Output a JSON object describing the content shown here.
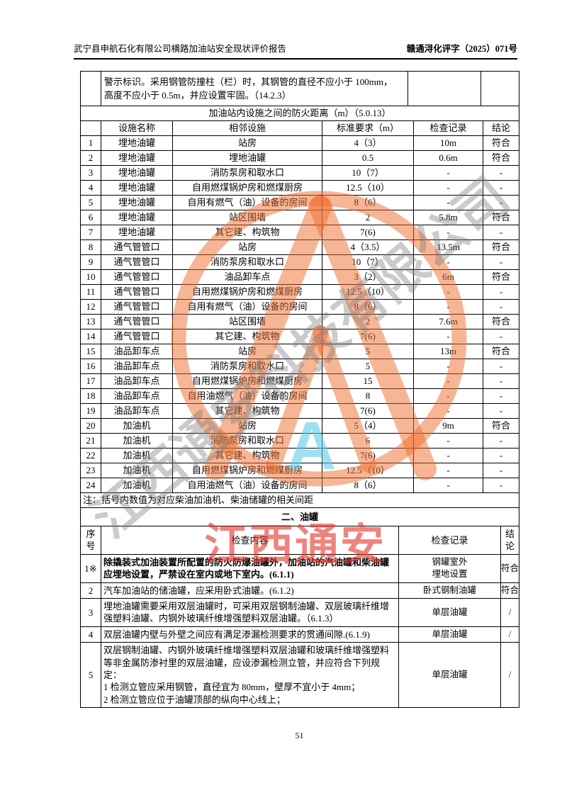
{
  "page_header": {
    "left": "武宁县申航石化有限公司横路加油站安全现状评价报告",
    "right": "赣通浔化评字（2025）071号"
  },
  "carryover_row": {
    "lines": {
      "0": "警示标识。采用钢管防撞柱（栏）时，其钢管的直径不应小于 100mm，",
      "1": "高度不应小于 0.5m，并应设置牢固。（14.2.3）"
    }
  },
  "fire_distance_table": {
    "title": "加油站内设施之间的防火距离（m）（5.0.13）",
    "headers": [
      "",
      "设施名称",
      "相邻设施",
      "标准要求（m）",
      "检查记录",
      "结论"
    ],
    "rows": [
      [
        "1",
        "埋地油罐",
        "站房",
        "4（3）",
        "10m",
        "符合"
      ],
      [
        "2",
        "埋地油罐",
        "埋地油罐",
        "0.5",
        "0.6m",
        "符合"
      ],
      [
        "3",
        "埋地油罐",
        "消防泵房和取水口",
        "10（7）",
        "-",
        "-"
      ],
      [
        "4",
        "埋地油罐",
        "自用燃煤锅炉房和燃煤厨房",
        "12.5（10）",
        "-",
        "-"
      ],
      [
        "5",
        "埋地油罐",
        "自用有燃气（油）设备的房间",
        "8（6）",
        "-",
        "-"
      ],
      [
        "6",
        "埋地油罐",
        "站区围墙",
        "2",
        "5.8m",
        "符合"
      ],
      [
        "7",
        "埋地油罐",
        "其它建、构筑物",
        "7(6)",
        "-",
        "-"
      ],
      [
        "8",
        "通气管管口",
        "站房",
        "4（3.5）",
        "13.5m",
        "符合"
      ],
      [
        "9",
        "通气管管口",
        "消防泵房和取水口",
        "10（7）",
        "-",
        "-"
      ],
      [
        "10",
        "通气管管口",
        "油品卸车点",
        "3（2）",
        "6m",
        "符合"
      ],
      [
        "11",
        "通气管管口",
        "自用燃煤锅炉房和燃煤厨房",
        "12.5（10）",
        "-",
        "-"
      ],
      [
        "12",
        "通气管管口",
        "自用有燃气（油）设备的房间",
        "8（6）",
        "-",
        "-"
      ],
      [
        "13",
        "通气管管口",
        "站区围墙",
        "2",
        "7.6m",
        "符合"
      ],
      [
        "14",
        "通气管管口",
        "其它建、构筑物",
        "7(6)",
        "-",
        "-"
      ],
      [
        "15",
        "油品卸车点",
        "站房",
        "5",
        "13m",
        "符合"
      ],
      [
        "16",
        "油品卸车点",
        "消防泵房和取水口",
        "5",
        "-",
        "-"
      ],
      [
        "17",
        "油品卸车点",
        "自用燃煤锅炉房和燃煤厨房",
        "15",
        "-",
        "-"
      ],
      [
        "18",
        "油品卸车点",
        "自用油燃气（油）设备的房间",
        "8",
        "-",
        "-"
      ],
      [
        "19",
        "油品卸车点",
        "其它建、构筑物",
        "7(6)",
        "-",
        "-"
      ],
      [
        "20",
        "加油机",
        "站房",
        "5（4）",
        "9m",
        "符合"
      ],
      [
        "21",
        "加油机",
        "消防泵房和取水口",
        "6",
        "-",
        "-"
      ],
      [
        "22",
        "加油机",
        "其它建、构筑物",
        "7(6)",
        "-",
        "-"
      ],
      [
        "23",
        "加油机",
        "自用燃煤锅炉房和燃煤厨房",
        "12.5（10）",
        "-",
        "-"
      ],
      [
        "24",
        "加油机",
        "自用油燃气（油）设备的房间",
        "8（6）",
        "-",
        "-"
      ]
    ],
    "note": "注：括号内数值为对应柴油加油机、柴油储罐的相关间距"
  },
  "tank_section": {
    "title": "二、油罐",
    "headers": [
      "序号",
      "检查内容",
      "检查记录",
      "结论"
    ],
    "rows": [
      {
        "no": "1※",
        "content": "除撬装式加油装置所配置的防火防爆油罐外，加油站的汽油罐和柴油罐应埋地设置，严禁设在室内或地下室内。(6.1.1)",
        "record": "钢罐室外\n埋地设置",
        "conclusion": "符合",
        "bold": true
      },
      {
        "no": "2",
        "content": "汽车加油站的储油罐，应采用卧式油罐。(6.1.2)",
        "record": "卧式钢制油罐",
        "conclusion": "符合",
        "bold": false
      },
      {
        "no": "3",
        "content": "埋地油罐需要采用双层油罐时，可采用双层钢制油罐、双层玻璃纤维增强塑料油罐、内钢外玻璃纤维增强塑料双层油罐。（6.1.3）",
        "record": "单层油罐",
        "conclusion": "/",
        "bold": false
      },
      {
        "no": "4",
        "content": "双层油罐内壁与外壁之间应有满足渗漏检测要求的贯通间隙.(6.1.9)",
        "record": "单层油罐",
        "conclusion": "/",
        "bold": false
      },
      {
        "no": "5",
        "content": "双层钢制油罐、内钢外玻璃纤维增强塑料双层油罐和玻璃纤维增强塑料等非金属防渗衬里的双层油罐，应设渗漏检测立管，并应符合下列规定：\n1 检测立管应采用钢管，直径宜为 80mm，壁厚不宜小于 4mm；\n2 检测立管应位于油罐顶部的纵向中心线上；",
        "record": "单层油罐",
        "conclusion": "/",
        "bold": false
      }
    ]
  },
  "watermark": {
    "diagonal_text": "江西通安科技有限公司",
    "cyan_letter": "A",
    "red_text": "江西通安",
    "stamp_color": "#ee6c2c",
    "red_color": "#e53028",
    "gray_color": "#7d7d7d",
    "cyan_color": "#5fcae9"
  },
  "page_number": "51"
}
